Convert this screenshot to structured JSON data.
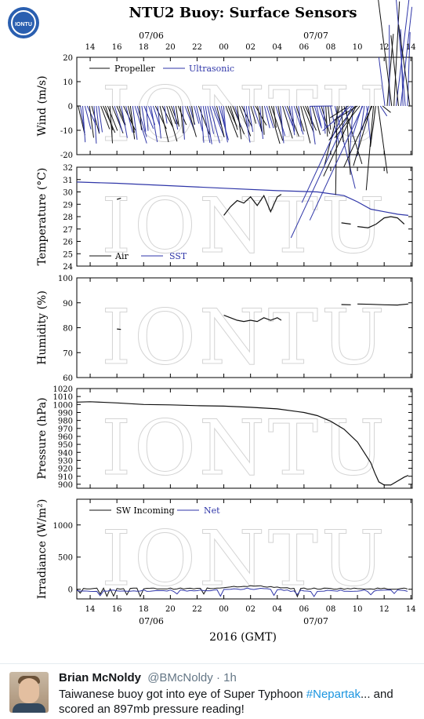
{
  "figure": {
    "title": "NTU2 Buoy: Surface Sensors",
    "logo_text": "IONTU",
    "watermark": "IONTU",
    "xlabel": "2016 (GMT)",
    "x_ticks": [
      14,
      16,
      18,
      20,
      22,
      "00",
      "02",
      "04",
      "06",
      "08",
      10,
      12,
      14
    ],
    "date_labels": [
      "07/06",
      "07/07"
    ],
    "colors": {
      "black": "#111111",
      "blue": "#2f36a8"
    }
  },
  "chart_data": [
    {
      "type": "line",
      "panel": "wind",
      "ylabel": "Wind (m/s)",
      "ylim": [
        -20,
        20
      ],
      "yticks": [
        -20,
        -10,
        0,
        10,
        20
      ],
      "legend": [
        "Propeller",
        "Ultrasonic"
      ],
      "legend_position": "top-left",
      "note": "stick vectors"
    },
    {
      "type": "line",
      "panel": "temperature",
      "ylabel": "Temperature (°C)",
      "ylim": [
        24,
        32
      ],
      "yticks": [
        24,
        25,
        26,
        27,
        28,
        29,
        30,
        31,
        32
      ],
      "legend": [
        "Air",
        "SST"
      ],
      "legend_position": "bottom-left",
      "series": [
        {
          "name": "SST",
          "x": [
            13,
            16,
            20,
            24,
            28,
            31,
            33,
            34,
            35,
            36,
            37,
            37.8
          ],
          "y": [
            30.8,
            30.7,
            30.5,
            30.3,
            30.1,
            30.0,
            29.7,
            29.2,
            28.6,
            28.4,
            28.2,
            28.1
          ]
        },
        {
          "name": "Air",
          "x": [
            16,
            16.3
          ],
          "y": [
            29.4,
            29.5
          ]
        },
        {
          "name": "Air",
          "x": [
            24,
            24.5,
            25,
            25.5,
            26,
            26.5,
            27,
            27.5,
            28,
            28.3
          ],
          "y": [
            28.1,
            28.8,
            29.3,
            29.1,
            29.6,
            28.9,
            29.7,
            28.4,
            29.6,
            29.8
          ]
        },
        {
          "name": "Air",
          "x": [
            32.8,
            33.5
          ],
          "y": [
            27.5,
            27.4
          ]
        },
        {
          "name": "Air",
          "x": [
            34,
            34.8,
            35.4,
            36,
            36.5,
            37,
            37.5
          ],
          "y": [
            27.2,
            27.1,
            27.4,
            27.9,
            28.0,
            27.9,
            27.4
          ]
        }
      ]
    },
    {
      "type": "line",
      "panel": "humidity",
      "ylabel": "Humidity (%)",
      "ylim": [
        60,
        100
      ],
      "yticks": [
        60,
        70,
        80,
        90,
        100
      ],
      "series": [
        {
          "name": "Humidity",
          "x": [
            16,
            16.3
          ],
          "y": [
            79.5,
            79.3
          ]
        },
        {
          "name": "Humidity",
          "x": [
            24,
            24.5,
            25,
            25.5,
            26,
            26.5,
            27,
            27.5,
            28,
            28.3
          ],
          "y": [
            85,
            84,
            83,
            82.5,
            83,
            82.5,
            84,
            83,
            84,
            83
          ]
        },
        {
          "name": "Humidity",
          "x": [
            32.8,
            33.5
          ],
          "y": [
            89.3,
            89.2
          ]
        },
        {
          "name": "Humidity",
          "x": [
            34,
            35,
            36,
            37,
            37.8
          ],
          "y": [
            89.5,
            89.4,
            89.2,
            89.1,
            89.5
          ]
        }
      ]
    },
    {
      "type": "line",
      "panel": "pressure",
      "ylabel": "Pressure (hPa)",
      "ylim": [
        895,
        1020
      ],
      "yticks": [
        900,
        910,
        920,
        930,
        940,
        950,
        960,
        970,
        980,
        990,
        1000,
        1010,
        1020
      ],
      "series": [
        {
          "name": "Pressure",
          "x": [
            13,
            14,
            16,
            18,
            20,
            22,
            24,
            26,
            28,
            30,
            31,
            32,
            33,
            34,
            34.5,
            35,
            35.3,
            35.6,
            36,
            36.5,
            37,
            37.5,
            37.8
          ],
          "y": [
            1003,
            1003.5,
            1002,
            1000,
            999.5,
            998.5,
            998,
            996.5,
            994.5,
            990,
            986,
            979,
            969,
            953,
            940,
            927,
            914,
            903,
            899,
            899,
            904,
            909,
            911
          ]
        }
      ]
    },
    {
      "type": "line",
      "panel": "irradiance",
      "ylabel": "Irradiance (W/m²)",
      "ylim": [
        -150,
        1400
      ],
      "yticks": [
        0,
        500,
        1000
      ],
      "legend": [
        "SW Incoming",
        "Net"
      ],
      "legend_position": "top-left"
    }
  ],
  "tweet": {
    "name": "Brian McNoldy",
    "handle": "@BMcNoldy",
    "time": "· 1h",
    "text_before": "Taiwanese buoy got into eye of Super Typhoon ",
    "hashtag": "#Nepartak",
    "text_after": "... and scored an 897mb pressure reading!"
  }
}
